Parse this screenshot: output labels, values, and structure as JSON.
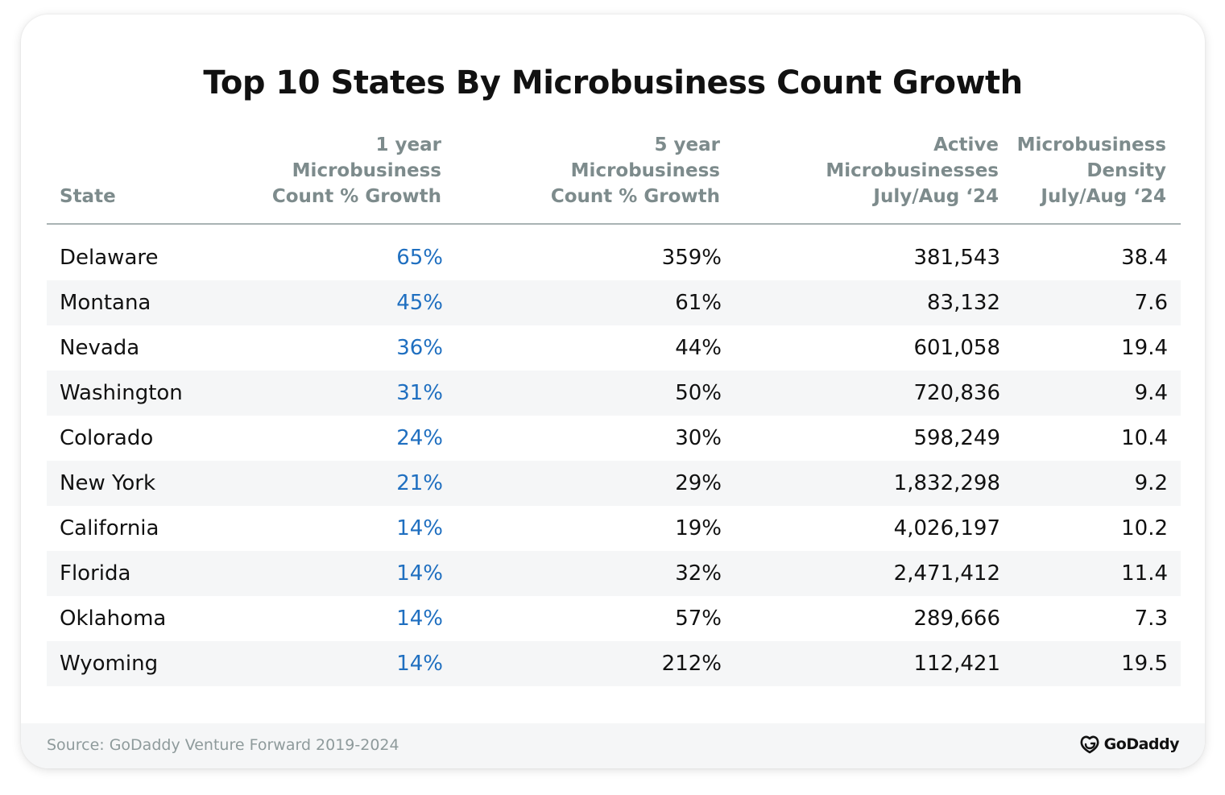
{
  "title": "Top 10 States By Microbusiness Count Growth",
  "headers": {
    "state": "State",
    "col1": "1 year\nMicrobusiness\nCount % Growth",
    "col2": "5 year\nMicrobusiness\nCount % Growth",
    "col3": "Active\nMicrobusinesses\nJuly/Aug ‘24",
    "col4": "Microbusiness\nDensity\nJuly/Aug ‘24"
  },
  "rows": [
    {
      "state": "Delaware",
      "one_year": "65%",
      "five_year": "359%",
      "active": "381,543",
      "density": "38.4"
    },
    {
      "state": "Montana",
      "one_year": "45%",
      "five_year": "61%",
      "active": "83,132",
      "density": "7.6"
    },
    {
      "state": "Nevada",
      "one_year": "36%",
      "five_year": "44%",
      "active": "601,058",
      "density": "19.4"
    },
    {
      "state": "Washington",
      "one_year": "31%",
      "five_year": "50%",
      "active": "720,836",
      "density": "9.4"
    },
    {
      "state": "Colorado",
      "one_year": "24%",
      "five_year": "30%",
      "active": "598,249",
      "density": "10.4"
    },
    {
      "state": "New York",
      "one_year": "21%",
      "five_year": "29%",
      "active": "1,832,298",
      "density": "9.2"
    },
    {
      "state": "California",
      "one_year": "14%",
      "five_year": "19%",
      "active": "4,026,197",
      "density": "10.2"
    },
    {
      "state": "Florida",
      "one_year": "14%",
      "five_year": "32%",
      "active": "2,471,412",
      "density": "11.4"
    },
    {
      "state": "Oklahoma",
      "one_year": "14%",
      "five_year": "57%",
      "active": "289,666",
      "density": "7.3"
    },
    {
      "state": "Wyoming",
      "one_year": "14%",
      "five_year": "212%",
      "active": "112,421",
      "density": "19.5"
    }
  ],
  "source": "Source: GoDaddy Venture Forward 2019-2024",
  "logo": {
    "text": "GoDaddy",
    "icon": "godaddy-logo-icon"
  },
  "colors": {
    "accent_blue": "#1f6fc0",
    "header_gray": "#7d8b8c",
    "stripe": "#f5f6f7",
    "text": "#111111"
  },
  "chart_data": {
    "type": "table",
    "title": "Top 10 States By Microbusiness Count Growth",
    "columns": [
      "State",
      "1 year Microbusiness Count % Growth",
      "5 year Microbusiness Count % Growth",
      "Active Microbusinesses July/Aug ‘24",
      "Microbusiness Density July/Aug ‘24"
    ],
    "rows": [
      [
        "Delaware",
        "65%",
        "359%",
        "381,543",
        "38.4"
      ],
      [
        "Montana",
        "45%",
        "61%",
        "83,132",
        "7.6"
      ],
      [
        "Nevada",
        "36%",
        "44%",
        "601,058",
        "19.4"
      ],
      [
        "Washington",
        "31%",
        "50%",
        "720,836",
        "9.4"
      ],
      [
        "Colorado",
        "24%",
        "30%",
        "598,249",
        "10.4"
      ],
      [
        "New York",
        "21%",
        "29%",
        "1,832,298",
        "9.2"
      ],
      [
        "California",
        "14%",
        "19%",
        "4,026,197",
        "10.2"
      ],
      [
        "Florida",
        "14%",
        "32%",
        "2,471,412",
        "11.4"
      ],
      [
        "Oklahoma",
        "14%",
        "57%",
        "289,666",
        "7.3"
      ],
      [
        "Wyoming",
        "14%",
        "212%",
        "112,421",
        "19.5"
      ]
    ]
  }
}
